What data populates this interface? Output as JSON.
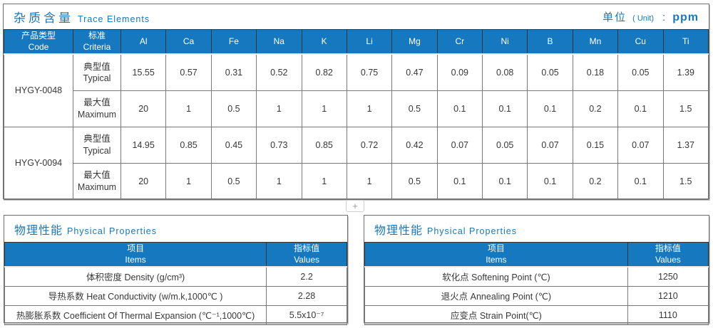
{
  "colors": {
    "accent": "#1678be",
    "header_text": "#ffffff",
    "grid": "#7a7a7a"
  },
  "trace": {
    "title_zh": "杂质含量",
    "title_en": "Trace Elements",
    "unit_label": "单位",
    "unit_paren": "( Unit)",
    "unit_colon": ":",
    "unit_value": "ppm",
    "col1_zh": "产品类型",
    "col1_en": "Code",
    "col2_zh": "标准",
    "col2_en": "Criteria",
    "elements": [
      "Al",
      "Ca",
      "Fe",
      "Na",
      "K",
      "Li",
      "Mg",
      "Cr",
      "Ni",
      "B",
      "Mn",
      "Cu",
      "Ti"
    ],
    "rows": [
      {
        "code": "HYGY-0048",
        "type_zh": "典型值",
        "type_en": "Typical",
        "values": [
          "15.55",
          "0.57",
          "0.31",
          "0.52",
          "0.82",
          "0.75",
          "0.47",
          "0.09",
          "0.08",
          "0.05",
          "0.18",
          "0.05",
          "1.39"
        ]
      },
      {
        "code": "HYGY-0048",
        "type_zh": "最大值",
        "type_en": "Maximum",
        "values": [
          "20",
          "1",
          "0.5",
          "1",
          "1",
          "1",
          "0.5",
          "0.1",
          "0.1",
          "0.1",
          "0.2",
          "0.1",
          "1.5"
        ]
      },
      {
        "code": "HYGY-0094",
        "type_zh": "典型值",
        "type_en": "Typical",
        "values": [
          "14.95",
          "0.85",
          "0.45",
          "0.73",
          "0.85",
          "0.72",
          "0.42",
          "0.07",
          "0.05",
          "0.07",
          "0.15",
          "0.07",
          "1.37"
        ]
      },
      {
        "code": "HYGY-0094",
        "type_zh": "最大值",
        "type_en": "Maximum",
        "values": [
          "20",
          "1",
          "0.5",
          "1",
          "1",
          "1",
          "0.5",
          "0.1",
          "0.1",
          "0.1",
          "0.2",
          "0.1",
          "1.5"
        ]
      }
    ]
  },
  "expander": {
    "label": "+"
  },
  "physical_left": {
    "title_zh": "物理性能",
    "title_en": "Physical Properties",
    "col_items_zh": "项目",
    "col_items_en": "Items",
    "col_values_zh": "指标值",
    "col_values_en": "Values",
    "rows": [
      {
        "item": "体积密度 Density (g/cm³)",
        "value": "2.2"
      },
      {
        "item": "导热系数 Heat Conductivity (w/m.k,1000℃ )",
        "value": "2.28"
      },
      {
        "item": "热膨胀系数 Coefficient Of Thermal Expansion (℃⁻¹,1000℃)",
        "value": "5.5x10⁻⁷"
      }
    ]
  },
  "physical_right": {
    "title_zh": "物理性能",
    "title_en": "Physical Properties",
    "col_items_zh": "项目",
    "col_items_en": "Items",
    "col_values_zh": "指标值",
    "col_values_en": "Values",
    "rows": [
      {
        "item": "软化点 Softening Point (℃)",
        "value": "1250"
      },
      {
        "item": "退火点 Annealing Point (℃)",
        "value": "1210"
      },
      {
        "item": "应变点 Strain Point(℃)",
        "value": "1110"
      }
    ]
  }
}
